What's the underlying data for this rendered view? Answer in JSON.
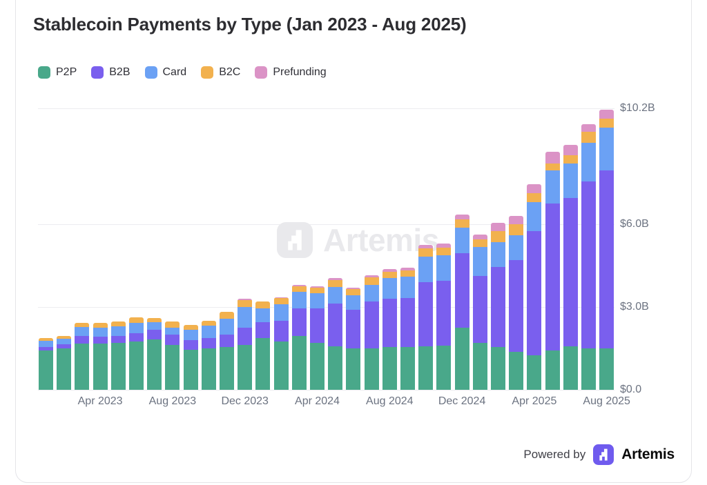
{
  "title": "Stablecoin Payments by Type (Jan 2023 - Aug 2025)",
  "watermark": {
    "text": "Artemis"
  },
  "footer": {
    "powered_by": "Powered by",
    "brand": "Artemis",
    "logo_color": "#6F5BEE"
  },
  "chart_data": {
    "type": "bar",
    "stacked": true,
    "unit": "USD billions",
    "ylim": [
      0,
      10.2
    ],
    "grid": true,
    "legend_position": "top-left",
    "categories": [
      "Jan 2023",
      "Feb 2023",
      "Mar 2023",
      "Apr 2023",
      "May 2023",
      "Jun 2023",
      "Jul 2023",
      "Aug 2023",
      "Sep 2023",
      "Oct 2023",
      "Nov 2023",
      "Dec 2023",
      "Jan 2024",
      "Feb 2024",
      "Mar 2024",
      "Apr 2024",
      "May 2024",
      "Jun 2024",
      "Jul 2024",
      "Aug 2024",
      "Sep 2024",
      "Oct 2024",
      "Nov 2024",
      "Dec 2024",
      "Jan 2025",
      "Feb 2025",
      "Mar 2025",
      "Apr 2025",
      "May 2025",
      "Jun 2025",
      "Jul 2025",
      "Aug 2025"
    ],
    "series": [
      {
        "name": "P2P",
        "color": "#49a88a",
        "values": [
          1.43,
          1.49,
          1.67,
          1.68,
          1.7,
          1.75,
          1.83,
          1.63,
          1.45,
          1.5,
          1.54,
          1.63,
          1.88,
          1.75,
          1.96,
          1.71,
          1.58,
          1.5,
          1.5,
          1.54,
          1.55,
          1.58,
          1.6,
          2.25,
          1.71,
          1.54,
          1.38,
          1.25,
          1.42,
          1.58,
          1.5,
          1.5
        ]
      },
      {
        "name": "B2B",
        "color": "#7a5fee",
        "values": [
          0.13,
          0.15,
          0.27,
          0.25,
          0.25,
          0.29,
          0.35,
          0.38,
          0.34,
          0.38,
          0.46,
          0.63,
          0.58,
          0.75,
          1.0,
          1.25,
          1.55,
          1.4,
          1.7,
          1.75,
          1.78,
          2.33,
          2.35,
          2.71,
          2.42,
          2.92,
          3.32,
          4.5,
          5.33,
          5.38,
          6.04,
          6.46
        ]
      },
      {
        "name": "Card",
        "color": "#6ba1f4",
        "values": [
          0.21,
          0.22,
          0.33,
          0.33,
          0.35,
          0.38,
          0.28,
          0.25,
          0.38,
          0.45,
          0.58,
          0.75,
          0.5,
          0.6,
          0.6,
          0.55,
          0.6,
          0.52,
          0.6,
          0.75,
          0.78,
          0.92,
          0.93,
          0.92,
          1.04,
          0.88,
          0.89,
          1.04,
          1.21,
          1.25,
          1.42,
          1.54
        ]
      },
      {
        "name": "B2C",
        "color": "#f2b14e",
        "values": [
          0.11,
          0.1,
          0.15,
          0.17,
          0.18,
          0.21,
          0.13,
          0.21,
          0.17,
          0.18,
          0.25,
          0.25,
          0.25,
          0.23,
          0.18,
          0.19,
          0.25,
          0.23,
          0.28,
          0.23,
          0.21,
          0.29,
          0.28,
          0.29,
          0.29,
          0.42,
          0.42,
          0.33,
          0.25,
          0.29,
          0.38,
          0.33
        ]
      },
      {
        "name": "Prefunding",
        "color": "#db93c6",
        "values": [
          0,
          0,
          0,
          0,
          0,
          0,
          0,
          0,
          0,
          0,
          0,
          0.05,
          0,
          0.03,
          0.05,
          0.05,
          0.06,
          0.06,
          0.07,
          0.1,
          0.1,
          0.13,
          0.13,
          0.17,
          0.17,
          0.28,
          0.29,
          0.33,
          0.42,
          0.38,
          0.29,
          0.33
        ]
      }
    ],
    "y_ticks": [
      {
        "value": 0,
        "label": "$0.0"
      },
      {
        "value": 3,
        "label": "$3.0B"
      },
      {
        "value": 6,
        "label": "$6.0B"
      },
      {
        "value": 10.2,
        "label": "$10.2B"
      }
    ],
    "x_ticks": [
      "Apr 2023",
      "Aug 2023",
      "Dec 2023",
      "Apr 2024",
      "Aug 2024",
      "Dec 2024",
      "Apr 2025",
      "Aug 2025"
    ]
  }
}
